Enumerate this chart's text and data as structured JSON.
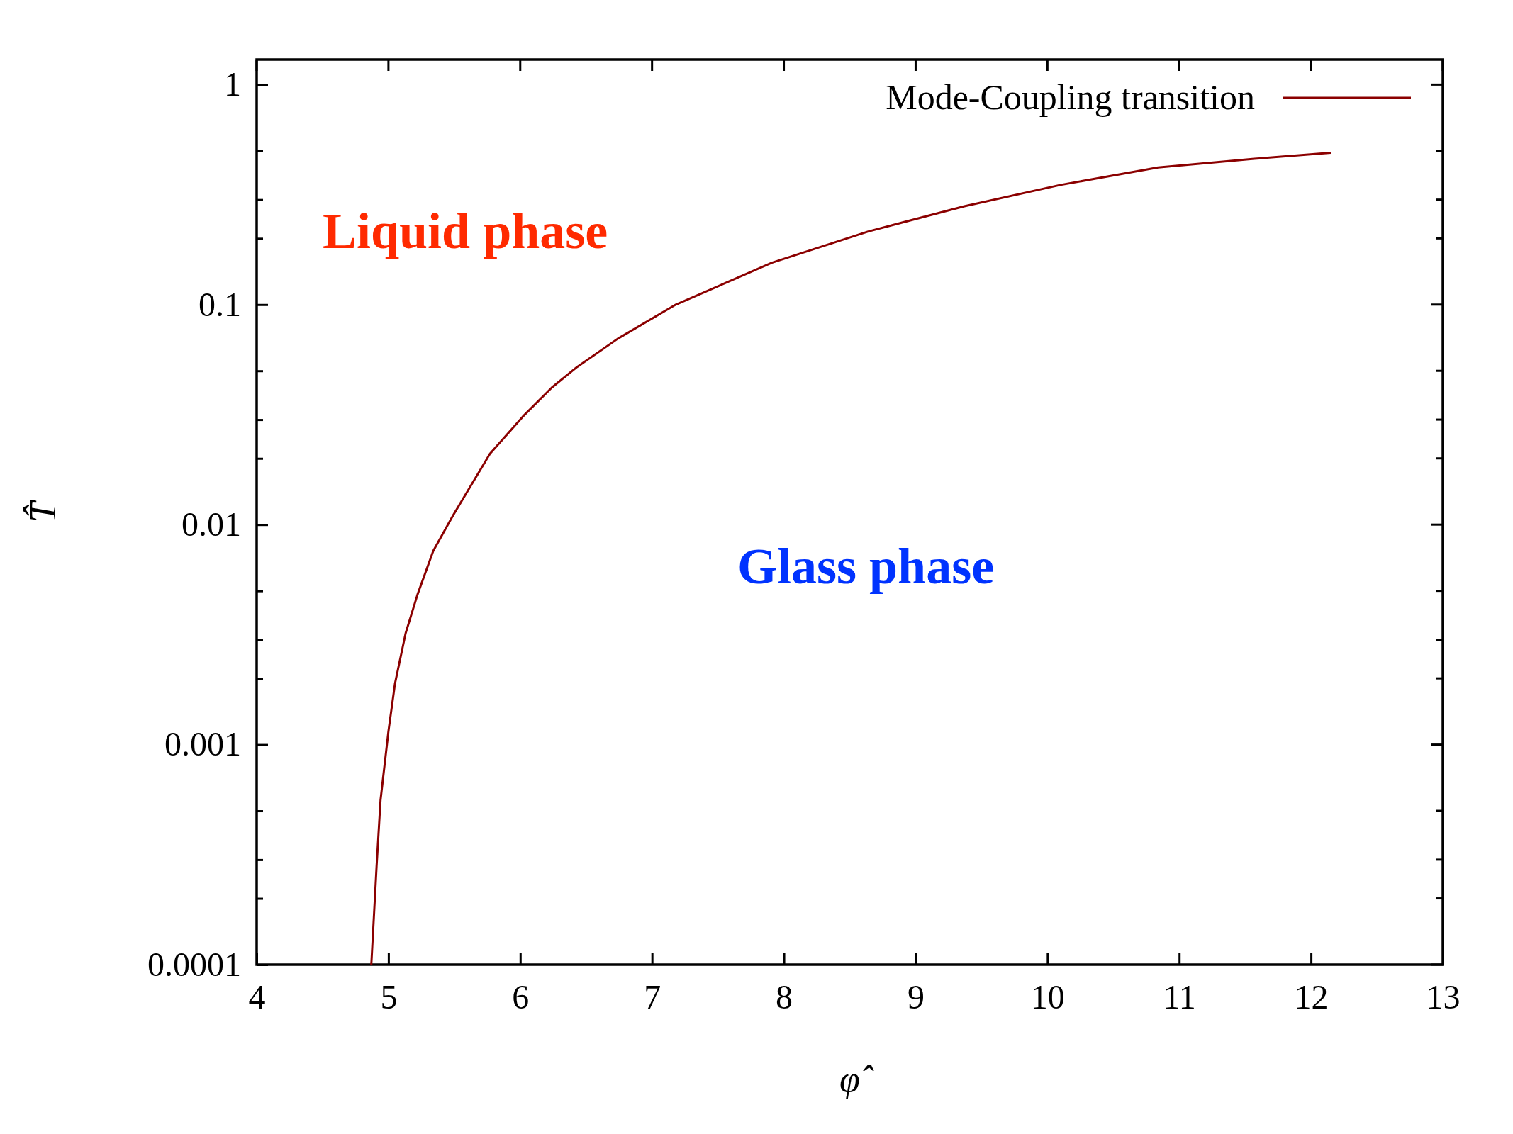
{
  "chart_data": {
    "type": "line",
    "xlabel": "φ̂",
    "ylabel": "T̂",
    "xlim": [
      4,
      13
    ],
    "xticks": [
      4,
      5,
      6,
      7,
      8,
      9,
      10,
      11,
      12,
      13
    ],
    "ylim": [
      0.0001,
      1.3
    ],
    "log": "y",
    "yticks": [
      {
        "value": 0.0001,
        "label": "0.0001"
      },
      {
        "value": 0.0002,
        "label": null
      },
      {
        "value": 0.0003,
        "label": null
      },
      {
        "value": 0.0005,
        "label": null
      },
      {
        "value": 0.001,
        "label": "0.001"
      },
      {
        "value": 0.002,
        "label": null
      },
      {
        "value": 0.003,
        "label": null
      },
      {
        "value": 0.005,
        "label": null
      },
      {
        "value": 0.01,
        "label": "0.01"
      },
      {
        "value": 0.02,
        "label": null
      },
      {
        "value": 0.03,
        "label": null
      },
      {
        "value": 0.05,
        "label": null
      },
      {
        "value": 0.1,
        "label": "0.1"
      },
      {
        "value": 0.2,
        "label": null
      },
      {
        "value": 0.3,
        "label": null
      },
      {
        "value": 0.5,
        "label": null
      },
      {
        "value": 1,
        "label": "1"
      }
    ],
    "series": [
      {
        "name": "Mode-Coupling transition",
        "color": "#8b0000",
        "x": [
          4.87,
          4.91,
          4.94,
          5.0,
          5.05,
          5.13,
          5.22,
          5.34,
          5.49,
          5.77,
          6.02,
          6.24,
          6.43,
          6.74,
          7.18,
          7.91,
          8.64,
          9.37,
          10.1,
          10.84,
          11.57,
          12.15
        ],
        "values": [
          0.0001,
          0.00028,
          0.00056,
          0.00115,
          0.0019,
          0.0032,
          0.0048,
          0.0076,
          0.011,
          0.021,
          0.031,
          0.042,
          0.052,
          0.07,
          0.1,
          0.155,
          0.215,
          0.28,
          0.35,
          0.42,
          0.46,
          0.49
        ]
      }
    ],
    "annotations": [
      "Liquid phase",
      "Glass phase"
    ],
    "legend": "top right",
    "grid": false,
    "marker": "none",
    "line_style": "solid"
  }
}
